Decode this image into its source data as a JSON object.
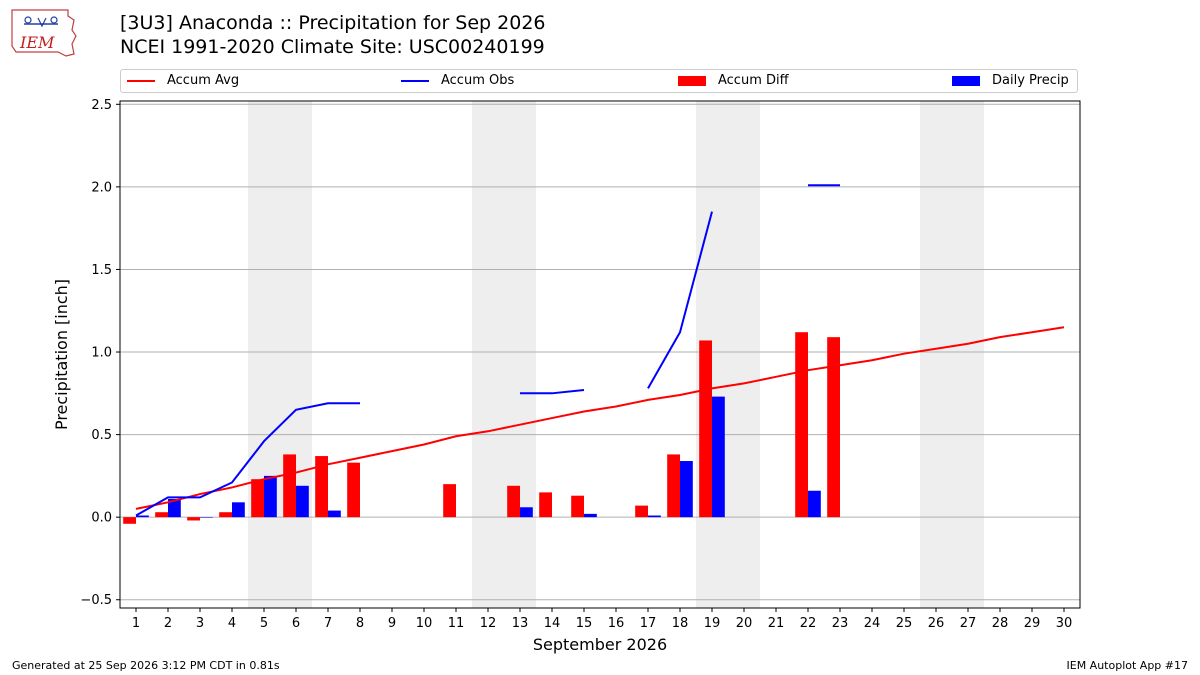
{
  "header": {
    "title_line1": "[3U3] Anaconda :: Precipitation for Sep 2026",
    "title_line2": "NCEI 1991-2020 Climate Site: USC00240199",
    "logo_text": "IEM"
  },
  "legend": {
    "avg": "Accum Avg",
    "obs": "Accum Obs",
    "diff": "Accum Diff",
    "daily": "Daily Precip"
  },
  "colors": {
    "avg": "#ff0000",
    "obs": "#0000ff",
    "diff": "#ff0000",
    "daily": "#0000ff",
    "weekend_band": "#eeeeee",
    "grid": "#b0b0b0"
  },
  "footer": {
    "generated": "Generated at 25 Sep 2026 3:12 PM CDT in 0.81s",
    "app": "IEM Autoplot App #17"
  },
  "chart_data": {
    "type": "bar",
    "xlabel": "September 2026",
    "ylabel": "Precipitation [inch]",
    "xlim": [
      0.5,
      30.5
    ],
    "ylim": [
      -0.55,
      2.52
    ],
    "yticks": [
      -0.5,
      0.0,
      0.5,
      1.0,
      1.5,
      2.0,
      2.5
    ],
    "ytick_labels": [
      "−0.5",
      "0.0",
      "0.5",
      "1.0",
      "1.5",
      "2.0",
      "2.5"
    ],
    "xticks": [
      1,
      2,
      3,
      4,
      5,
      6,
      7,
      8,
      9,
      10,
      11,
      12,
      13,
      14,
      15,
      16,
      17,
      18,
      19,
      20,
      21,
      22,
      23,
      24,
      25,
      26,
      27,
      28,
      29,
      30
    ],
    "grid": "horizontal",
    "legend_position": "top",
    "weekend_bands": [
      [
        4.5,
        6.5
      ],
      [
        11.5,
        13.5
      ],
      [
        18.5,
        20.5
      ],
      [
        25.5,
        27.5
      ]
    ],
    "series": [
      {
        "name": "Accum Avg",
        "kind": "line",
        "x": [
          1,
          2,
          3,
          4,
          5,
          6,
          7,
          8,
          9,
          10,
          11,
          12,
          13,
          14,
          15,
          16,
          17,
          18,
          19,
          20,
          21,
          22,
          23,
          24,
          25,
          26,
          27,
          28,
          29,
          30
        ],
        "values": [
          0.05,
          0.09,
          0.14,
          0.18,
          0.23,
          0.27,
          0.32,
          0.36,
          0.4,
          0.44,
          0.49,
          0.52,
          0.56,
          0.6,
          0.64,
          0.67,
          0.71,
          0.74,
          0.78,
          0.81,
          0.85,
          0.89,
          0.92,
          0.95,
          0.99,
          1.02,
          1.05,
          1.09,
          1.12,
          1.15
        ]
      },
      {
        "name": "Accum Obs",
        "kind": "line",
        "segments": [
          {
            "x": [
              1,
              2,
              3,
              4,
              5,
              6,
              7,
              8
            ],
            "values": [
              0.01,
              0.12,
              0.12,
              0.21,
              0.46,
              0.65,
              0.69,
              0.69
            ]
          },
          {
            "x": [
              13,
              14,
              15
            ],
            "values": [
              0.75,
              0.75,
              0.77
            ]
          },
          {
            "x": [
              17,
              18,
              19
            ],
            "values": [
              0.78,
              1.12,
              1.85
            ]
          },
          {
            "x": [
              22,
              23
            ],
            "values": [
              2.01,
              2.01
            ]
          }
        ]
      },
      {
        "name": "Accum Diff",
        "kind": "bar",
        "x": [
          1,
          2,
          3,
          4,
          5,
          6,
          7,
          8,
          11,
          13,
          14,
          15,
          17,
          18,
          19,
          22,
          23
        ],
        "values": [
          -0.04,
          0.03,
          -0.02,
          0.03,
          0.23,
          0.38,
          0.37,
          0.33,
          0.2,
          0.19,
          0.15,
          0.13,
          0.07,
          0.38,
          1.07,
          1.12,
          1.09
        ]
      },
      {
        "name": "Daily Precip",
        "kind": "bar",
        "x": [
          1,
          2,
          3,
          4,
          5,
          6,
          7,
          13,
          15,
          17,
          18,
          19,
          22
        ],
        "values": [
          0.01,
          0.11,
          0.0,
          0.09,
          0.25,
          0.19,
          0.04,
          0.06,
          0.02,
          0.01,
          0.34,
          0.73,
          0.16
        ]
      }
    ]
  }
}
